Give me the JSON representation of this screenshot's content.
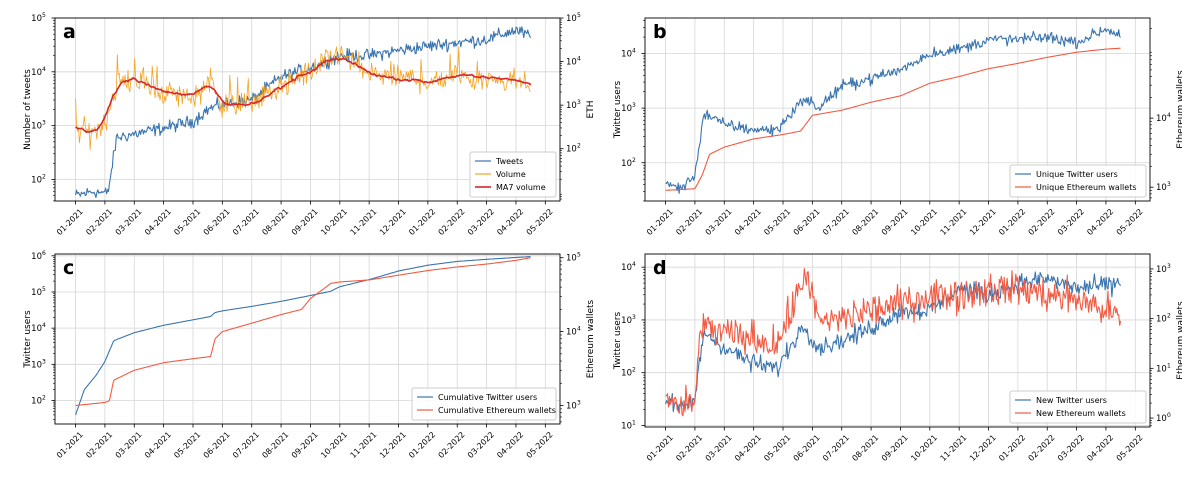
{
  "chart_data": [
    {
      "id": "a",
      "type": "line",
      "panel_letter": "a",
      "ylabel_left": "Number of tweets",
      "ylabel_right": "ETH",
      "left_log_range": [
        1.6,
        5.0
      ],
      "right_log_range": [
        0.8,
        5.0
      ],
      "left_ticks": [
        {
          "e": "2",
          "v": 2
        },
        {
          "e": "3",
          "v": 3
        },
        {
          "e": "4",
          "v": 4
        },
        {
          "e": "5",
          "v": 5
        }
      ],
      "right_ticks": [
        {
          "e": "2",
          "v": 2
        },
        {
          "e": "3",
          "v": 3
        },
        {
          "e": "4",
          "v": 4
        },
        {
          "e": "5",
          "v": 5
        }
      ],
      "legend": {
        "position": "lower-right",
        "entries": [
          "Tweets",
          "Volume",
          "MA7 volume"
        ]
      },
      "series": [
        {
          "name": "Tweets",
          "axis": "left",
          "color": "#3b75af",
          "gen": "tweets_a",
          "key_x": [
            0,
            0.6,
            1.1,
            1.4,
            2.0,
            3.0,
            4.0,
            4.5,
            5.0,
            6.0,
            7.0,
            8.0,
            9.0,
            10.0,
            11.0,
            12.0,
            13.0,
            14.0,
            15.0,
            15.5
          ],
          "key_y": [
            50,
            60,
            55,
            600,
            700,
            900,
            1200,
            2000,
            2500,
            3000,
            8000,
            12000,
            20000,
            20000,
            25000,
            30000,
            35000,
            40000,
            60000,
            45000
          ]
        },
        {
          "name": "Volume",
          "axis": "right",
          "color": "#f4a425",
          "gen": "vol_a",
          "key_x": [
            0,
            0.5,
            1.0,
            1.4,
            2.0,
            3.0,
            4.0,
            4.6,
            5.0,
            6.0,
            7.0,
            8.0,
            9.0,
            10.0,
            11.0,
            12.0,
            13.0,
            14.0,
            15.0,
            15.5
          ],
          "key_y": [
            300,
            220,
            400,
            3000,
            4000,
            2000,
            1500,
            4000,
            1000,
            1200,
            2500,
            6000,
            15000,
            5000,
            4500,
            3500,
            5000,
            4000,
            4000,
            3000
          ]
        },
        {
          "name": "MA7 volume",
          "axis": "right",
          "color": "#d62728",
          "gen": "ma7_a",
          "key_x": [
            0,
            0.5,
            1.0,
            1.4,
            2.0,
            3.0,
            4.0,
            4.6,
            5.0,
            6.0,
            7.0,
            8.0,
            9.0,
            10.0,
            11.0,
            12.0,
            13.0,
            14.0,
            15.0,
            15.5
          ],
          "key_y": [
            300,
            220,
            400,
            3000,
            4000,
            2000,
            1500,
            4000,
            1000,
            1200,
            2500,
            6000,
            15000,
            5000,
            4500,
            3500,
            5000,
            4000,
            4000,
            3000
          ]
        }
      ]
    },
    {
      "id": "b",
      "type": "line",
      "panel_letter": "b",
      "ylabel_left": "Twitter users",
      "ylabel_right": "Ethereum wallets",
      "left_log_range": [
        1.3,
        4.65
      ],
      "right_log_range": [
        2.8,
        5.45
      ],
      "left_ticks": [
        {
          "e": "2",
          "v": 2
        },
        {
          "e": "3",
          "v": 3
        },
        {
          "e": "4",
          "v": 4
        }
      ],
      "right_ticks": [
        {
          "e": "3",
          "v": 3
        },
        {
          "e": "4",
          "v": 4
        }
      ],
      "legend": {
        "position": "lower-right",
        "entries": [
          "Unique Twitter users",
          "Unique Ethereum wallets"
        ]
      },
      "series": [
        {
          "name": "Unique Twitter users",
          "axis": "left",
          "color": "#3b75af",
          "gen": "users_b",
          "key_x": [
            0,
            0.6,
            1.0,
            1.3,
            2.0,
            3.0,
            3.8,
            4.7,
            5.2,
            6.0,
            7.0,
            8.0,
            9.0,
            10.0,
            11.0,
            12.0,
            13.0,
            14.0,
            15.0,
            15.5
          ],
          "key_y": [
            40,
            35,
            60,
            800,
            500,
            400,
            400,
            1500,
            1000,
            2500,
            3500,
            5000,
            10000,
            12000,
            18000,
            18000,
            20000,
            16000,
            28000,
            22000
          ]
        },
        {
          "name": "Unique Ethereum wallets",
          "axis": "right",
          "color": "#f25b43",
          "gen": "smooth",
          "key_x": [
            0,
            1.0,
            1.25,
            1.5,
            2.0,
            3.0,
            4.0,
            4.6,
            5.0,
            6.0,
            7.0,
            8.0,
            9.0,
            10.0,
            11.0,
            12.0,
            13.0,
            14.0,
            15.0,
            15.5
          ],
          "key_y": [
            900,
            950,
            1500,
            3000,
            3800,
            5000,
            5800,
            6500,
            11000,
            13000,
            17000,
            21000,
            32000,
            40000,
            52000,
            62000,
            76000,
            90000,
            100000,
            103000
          ]
        }
      ]
    },
    {
      "id": "c",
      "type": "line",
      "panel_letter": "c",
      "ylabel_left": "Twitter users",
      "ylabel_right": "Ethereum wallets",
      "left_log_range": [
        1.35,
        6.05
      ],
      "right_log_range": [
        2.75,
        5.05
      ],
      "left_ticks": [
        {
          "e": "2",
          "v": 2
        },
        {
          "e": "3",
          "v": 3
        },
        {
          "e": "4",
          "v": 4
        },
        {
          "e": "5",
          "v": 5
        },
        {
          "e": "6",
          "v": 6
        }
      ],
      "right_ticks": [
        {
          "e": "3",
          "v": 3
        },
        {
          "e": "4",
          "v": 4
        },
        {
          "e": "5",
          "v": 5
        }
      ],
      "legend": {
        "position": "lower-right",
        "entries": [
          "Cumulative Twitter users",
          "Cumulative Ethereum wallets"
        ]
      },
      "series": [
        {
          "name": "Cumulative Twitter users",
          "axis": "left",
          "color": "#3b75af",
          "gen": "smooth",
          "key_x": [
            0,
            0.3,
            0.7,
            1.0,
            1.3,
            2.0,
            3.0,
            4.0,
            4.6,
            4.75,
            5.0,
            6.0,
            7.0,
            8.0,
            8.7,
            9.0,
            10.0,
            11.0,
            12.0,
            13.0,
            14.0,
            15.0,
            15.5
          ],
          "key_y": [
            40,
            200,
            500,
            1200,
            4500,
            7500,
            12000,
            17000,
            21000,
            27000,
            30000,
            40000,
            55000,
            80000,
            105000,
            140000,
            220000,
            380000,
            550000,
            700000,
            800000,
            900000,
            950000
          ]
        },
        {
          "name": "Cumulative Ethereum wallets",
          "axis": "right",
          "color": "#f25b43",
          "gen": "smooth",
          "key_x": [
            0,
            0.5,
            1.0,
            1.15,
            1.3,
            2.0,
            3.0,
            4.0,
            4.6,
            4.75,
            5.0,
            6.0,
            7.0,
            7.7,
            8.0,
            8.7,
            9.0,
            10.0,
            11.0,
            12.0,
            13.0,
            14.0,
            15.0,
            15.5
          ],
          "key_y": [
            1000,
            1050,
            1100,
            1150,
            2200,
            3000,
            3800,
            4300,
            4600,
            8000,
            10000,
            13000,
            17000,
            20000,
            28000,
            45000,
            47000,
            50000,
            58000,
            67000,
            75000,
            82000,
            92000,
            100000
          ]
        }
      ]
    },
    {
      "id": "d",
      "type": "line",
      "panel_letter": "d",
      "ylabel_left": "Twitter users",
      "ylabel_right": "Ethereum wallets",
      "left_log_range": [
        0.97,
        4.25
      ],
      "right_log_range": [
        -0.18,
        3.3
      ],
      "left_ticks": [
        {
          "e": "1",
          "v": 1
        },
        {
          "e": "2",
          "v": 2
        },
        {
          "e": "3",
          "v": 3
        },
        {
          "e": "4",
          "v": 4
        }
      ],
      "right_ticks": [
        {
          "e": "0",
          "v": 0
        },
        {
          "e": "1",
          "v": 1
        },
        {
          "e": "2",
          "v": 2
        },
        {
          "e": "3",
          "v": 3
        }
      ],
      "legend": {
        "position": "lower-right",
        "entries": [
          "New Twitter users",
          "New Ethereum wallets"
        ]
      },
      "series": [
        {
          "name": "New Twitter users",
          "axis": "left",
          "color": "#3b75af",
          "gen": "new_users_d",
          "key_x": [
            0,
            0.5,
            1.0,
            1.3,
            2.0,
            3.0,
            3.8,
            4.7,
            5.2,
            6.0,
            7.0,
            8.0,
            9.0,
            10.0,
            11.0,
            12.0,
            13.0,
            14.0,
            15.0,
            15.5
          ],
          "key_y": [
            30,
            20,
            30,
            600,
            300,
            150,
            120,
            800,
            300,
            400,
            700,
            1500,
            1500,
            4000,
            3000,
            5000,
            6000,
            4000,
            4500,
            5000
          ]
        },
        {
          "name": "New Ethereum wallets",
          "axis": "right",
          "color": "#f25b43",
          "gen": "new_wallets_d",
          "key_x": [
            0,
            0.5,
            1.0,
            1.2,
            1.5,
            2.0,
            3.0,
            3.8,
            4.6,
            4.8,
            5.2,
            6.0,
            7.0,
            8.0,
            9.0,
            10.0,
            11.0,
            12.0,
            13.0,
            14.0,
            15.0,
            15.5
          ],
          "key_y": [
            3,
            1.5,
            2,
            80,
            60,
            50,
            40,
            30,
            400,
            1000,
            80,
            100,
            150,
            200,
            300,
            300,
            400,
            400,
            300,
            250,
            150,
            100
          ]
        }
      ]
    }
  ],
  "x_axis": {
    "tick_labels": [
      "01-2021",
      "02-2021",
      "03-2021",
      "04-2021",
      "05-2021",
      "06-2021",
      "07-2021",
      "08-2021",
      "09-2021",
      "10-2021",
      "11-2021",
      "12-2021",
      "01-2022",
      "02-2022",
      "03-2022",
      "04-2022",
      "05-2022"
    ],
    "range_months": [
      -0.7,
      16.5
    ]
  },
  "log_base_label": "10"
}
